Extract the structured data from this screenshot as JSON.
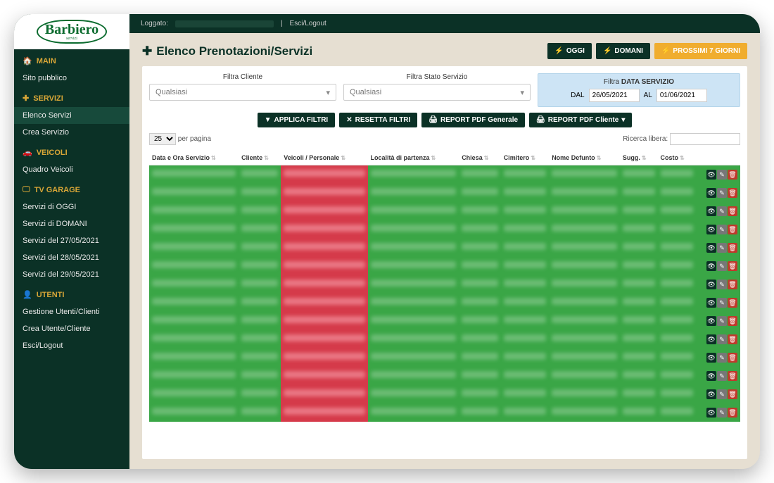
{
  "brand": {
    "name": "Barbiero",
    "tagline": "servizi"
  },
  "topbar": {
    "logged_label": "Loggato:",
    "sep": "|",
    "logout": "Esci/Logout"
  },
  "sidebar": {
    "sections": [
      {
        "icon": "🏠",
        "title": "MAIN",
        "items": [
          {
            "key": "sito-pubblico",
            "label": "Sito pubblico"
          }
        ]
      },
      {
        "icon": "✚",
        "title": "SERVIZI",
        "items": [
          {
            "key": "elenco-servizi",
            "label": "Elenco Servizi",
            "active": true
          },
          {
            "key": "crea-servizio",
            "label": "Crea Servizio"
          }
        ]
      },
      {
        "icon": "🚗",
        "title": "VEICOLI",
        "items": [
          {
            "key": "quadro-veicoli",
            "label": "Quadro Veicoli"
          }
        ]
      },
      {
        "icon": "🖵",
        "title": "TV GARAGE",
        "items": [
          {
            "key": "servizi-oggi",
            "label": "Servizi di OGGI"
          },
          {
            "key": "servizi-domani",
            "label": "Servizi di DOMANI"
          },
          {
            "key": "servizi-27",
            "label": "Servizi del 27/05/2021"
          },
          {
            "key": "servizi-28",
            "label": "Servizi del 28/05/2021"
          },
          {
            "key": "servizi-29",
            "label": "Servizi del 29/05/2021"
          }
        ]
      },
      {
        "icon": "👤",
        "title": "UTENTI",
        "items": [
          {
            "key": "gestione-utenti",
            "label": "Gestione Utenti/Clienti"
          },
          {
            "key": "crea-utente",
            "label": "Crea Utente/Cliente"
          },
          {
            "key": "esci-logout",
            "label": "Esci/Logout"
          }
        ]
      }
    ]
  },
  "page": {
    "title": "Elenco Prenotazioni/Servizi",
    "header_buttons": {
      "oggi": "OGGI",
      "domani": "DOMANI",
      "prossimi": "PROSSIMI 7 GIORNI"
    }
  },
  "filters": {
    "cliente": {
      "label": "Filtra Cliente",
      "value": "Qualsiasi"
    },
    "stato": {
      "label": "Filtra Stato Servizio",
      "value": "Qualsiasi"
    },
    "data": {
      "label_pre": "Filtra ",
      "label_bold": "DATA SERVIZIO",
      "dal": "DAL",
      "dal_value": "26/05/2021",
      "al": "AL",
      "al_value": "01/06/2021"
    }
  },
  "action_buttons": {
    "applica": "APPLICA FILTRI",
    "resetta": "RESETTA FILTRI",
    "pdf_gen": "REPORT PDF Generale",
    "pdf_cli": "REPORT PDF Cliente"
  },
  "table": {
    "per_page_value": "25",
    "per_page_label": "per pagina",
    "search_label": "Ricerca libera:",
    "columns": [
      "Data e Ora Servizio",
      "Cliente",
      "Veicoli / Personale",
      "Località di partenza",
      "Chiesa",
      "Cimitero",
      "Nome Defunto",
      "Sugg.",
      "Costo"
    ],
    "row_count": 14,
    "row_bg_color": "#3aa646",
    "highlight_col_bg": "#d53a4a",
    "action_icons": {
      "view": "👁",
      "edit": "✎",
      "del": "🗑"
    }
  },
  "colors": {
    "sidebar_bg": "#0b3126",
    "accent_gold": "#d8a637",
    "btn_dark": "#0b3126",
    "btn_yellow": "#f0ad2e",
    "date_filter_bg": "#cde4f5"
  }
}
